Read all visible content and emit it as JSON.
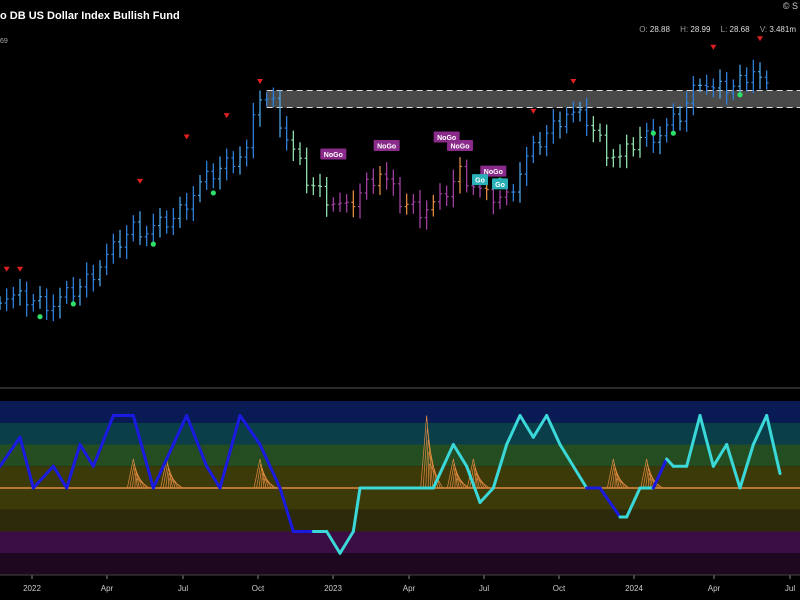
{
  "header": {
    "title": "o DB US Dollar Index Bullish Fund",
    "copyright": "© S",
    "ohlc": [
      {
        "key": "O:",
        "value": "28.88"
      },
      {
        "key": "H:",
        "value": "28.99"
      },
      {
        "key": "L:",
        "value": "28.68"
      },
      {
        "key": "V:",
        "value": "3.481m"
      }
    ],
    "left_scale_label": "69"
  },
  "chart_data": {
    "type": "line",
    "x_ticks": [
      "2022",
      "Apr",
      "Jul",
      "Oct",
      "2023",
      "Apr",
      "Jul",
      "Oct",
      "2024",
      "Apr",
      "Jul"
    ],
    "price": {
      "ylim": [
        25.4,
        29.5
      ],
      "series": [
        {
          "week": 0,
          "value": 26.45,
          "trend": "go"
        },
        {
          "week": 4,
          "value": 26.4,
          "trend": "go"
        },
        {
          "week": 8,
          "value": 26.35,
          "trend": "go"
        },
        {
          "week": 12,
          "value": 26.55,
          "trend": "go"
        },
        {
          "week": 16,
          "value": 26.9,
          "trend": "go"
        },
        {
          "week": 20,
          "value": 27.25,
          "trend": "go"
        },
        {
          "week": 22,
          "value": 27.2,
          "trend": "go"
        },
        {
          "week": 26,
          "value": 27.35,
          "trend": "go"
        },
        {
          "week": 30,
          "value": 27.75,
          "trend": "go"
        },
        {
          "week": 34,
          "value": 28.0,
          "trend": "go"
        },
        {
          "week": 37,
          "value": 28.15,
          "trend": "go"
        },
        {
          "week": 39,
          "value": 28.8,
          "trend": "go"
        },
        {
          "week": 41,
          "value": 28.7,
          "trend": "go"
        },
        {
          "week": 43,
          "value": 28.3,
          "trend": "weak"
        },
        {
          "week": 46,
          "value": 27.8,
          "trend": "weak"
        },
        {
          "week": 49,
          "value": 27.6,
          "trend": "nogo"
        },
        {
          "week": 52,
          "value": 27.45,
          "trend": "nogo"
        },
        {
          "week": 55,
          "value": 27.75,
          "trend": "nogo"
        },
        {
          "week": 57,
          "value": 27.9,
          "trend": "nogo"
        },
        {
          "week": 60,
          "value": 27.55,
          "trend": "nogo"
        },
        {
          "week": 63,
          "value": 27.45,
          "trend": "nogo"
        },
        {
          "week": 66,
          "value": 27.55,
          "trend": "nogo"
        },
        {
          "week": 69,
          "value": 27.9,
          "trend": "nogo"
        },
        {
          "week": 71,
          "value": 27.75,
          "trend": "nogo"
        },
        {
          "week": 73,
          "value": 27.6,
          "trend": "nogo"
        },
        {
          "week": 76,
          "value": 27.6,
          "trend": "go"
        },
        {
          "week": 79,
          "value": 28.05,
          "trend": "go"
        },
        {
          "week": 82,
          "value": 28.35,
          "trend": "go"
        },
        {
          "week": 85,
          "value": 28.6,
          "trend": "go"
        },
        {
          "week": 88,
          "value": 28.5,
          "trend": "weak"
        },
        {
          "week": 91,
          "value": 28.15,
          "trend": "weak"
        },
        {
          "week": 93,
          "value": 28.05,
          "trend": "weak"
        },
        {
          "week": 96,
          "value": 28.3,
          "trend": "go"
        },
        {
          "week": 99,
          "value": 28.35,
          "trend": "go"
        },
        {
          "week": 102,
          "value": 28.55,
          "trend": "go"
        },
        {
          "week": 105,
          "value": 29.0,
          "trend": "go"
        },
        {
          "week": 107,
          "value": 28.85,
          "trend": "go"
        },
        {
          "week": 110,
          "value": 28.9,
          "trend": "go"
        },
        {
          "week": 113,
          "value": 29.1,
          "trend": "go"
        },
        {
          "week": 115,
          "value": 28.85,
          "trend": "go"
        }
      ],
      "resistance_zone": [
        28.65,
        28.85
      ],
      "nogo_labels": [
        {
          "week": 50,
          "value": 28.1,
          "text": "NoGo"
        },
        {
          "week": 58,
          "value": 28.2,
          "text": "NoGo"
        },
        {
          "week": 67,
          "value": 28.3,
          "text": "NoGo"
        },
        {
          "week": 69,
          "value": 28.2,
          "text": "NoGo"
        },
        {
          "week": 74,
          "value": 27.9,
          "text": "NoGo"
        }
      ],
      "go_labels": [
        {
          "week": 72,
          "value": 27.8,
          "text": "Go"
        },
        {
          "week": 75,
          "value": 27.75,
          "text": "Go"
        }
      ],
      "red_triangles": [
        {
          "week": 1,
          "value": 26.75
        },
        {
          "week": 3,
          "value": 26.75
        },
        {
          "week": 21,
          "value": 27.78
        },
        {
          "week": 28,
          "value": 28.3
        },
        {
          "week": 34,
          "value": 28.55
        },
        {
          "week": 39,
          "value": 28.95
        },
        {
          "week": 80,
          "value": 28.6
        },
        {
          "week": 86,
          "value": 28.95
        },
        {
          "week": 107,
          "value": 29.35
        },
        {
          "week": 114,
          "value": 29.45
        }
      ],
      "green_dots": [
        {
          "week": 6,
          "value": 26.2
        },
        {
          "week": 11,
          "value": 26.35
        },
        {
          "week": 23,
          "value": 27.05
        },
        {
          "week": 32,
          "value": 27.65
        },
        {
          "week": 75,
          "value": 27.8
        },
        {
          "week": 98,
          "value": 28.35
        },
        {
          "week": 101,
          "value": 28.35
        },
        {
          "week": 111,
          "value": 28.8
        }
      ]
    },
    "oscillator": {
      "ylim": [
        -6,
        6
      ],
      "zero": 0,
      "series": [
        {
          "week": 0,
          "value": 1.5,
          "color": "blue"
        },
        {
          "week": 3,
          "value": 3.5,
          "color": "blue"
        },
        {
          "week": 5,
          "value": 0,
          "color": "blue"
        },
        {
          "week": 8,
          "value": 1.5,
          "color": "blue"
        },
        {
          "week": 10,
          "value": 0,
          "color": "blue"
        },
        {
          "week": 12,
          "value": 3,
          "color": "blue"
        },
        {
          "week": 14,
          "value": 1.5,
          "color": "blue"
        },
        {
          "week": 17,
          "value": 5,
          "color": "blue"
        },
        {
          "week": 20,
          "value": 5,
          "color": "blue"
        },
        {
          "week": 23,
          "value": 0,
          "color": "blue"
        },
        {
          "week": 26,
          "value": 3,
          "color": "blue"
        },
        {
          "week": 28,
          "value": 5,
          "color": "blue"
        },
        {
          "week": 31,
          "value": 1.5,
          "color": "blue"
        },
        {
          "week": 33,
          "value": 0,
          "color": "blue"
        },
        {
          "week": 36,
          "value": 5,
          "color": "blue"
        },
        {
          "week": 39,
          "value": 3,
          "color": "blue"
        },
        {
          "week": 42,
          "value": 0,
          "color": "blue"
        },
        {
          "week": 44,
          "value": -3,
          "color": "blue"
        },
        {
          "week": 47,
          "value": -3,
          "color": "blue"
        },
        {
          "week": 49,
          "value": -3,
          "color": "cyan"
        },
        {
          "week": 51,
          "value": -4.5,
          "color": "cyan"
        },
        {
          "week": 53,
          "value": -3,
          "color": "cyan"
        },
        {
          "week": 54,
          "value": 0,
          "color": "cyan"
        },
        {
          "week": 60,
          "value": 0,
          "color": "cyan"
        },
        {
          "week": 65,
          "value": 0,
          "color": "cyan"
        },
        {
          "week": 68,
          "value": 3,
          "color": "cyan"
        },
        {
          "week": 70,
          "value": 1.5,
          "color": "cyan"
        },
        {
          "week": 72,
          "value": -1,
          "color": "cyan"
        },
        {
          "week": 74,
          "value": 0,
          "color": "cyan"
        },
        {
          "week": 76,
          "value": 3,
          "color": "cyan"
        },
        {
          "week": 78,
          "value": 5,
          "color": "cyan"
        },
        {
          "week": 80,
          "value": 3.5,
          "color": "cyan"
        },
        {
          "week": 82,
          "value": 5,
          "color": "cyan"
        },
        {
          "week": 84,
          "value": 3,
          "color": "cyan"
        },
        {
          "week": 86,
          "value": 1.5,
          "color": "cyan"
        },
        {
          "week": 88,
          "value": 0,
          "color": "cyan"
        },
        {
          "week": 90,
          "value": 0,
          "color": "blue"
        },
        {
          "week": 93,
          "value": -2,
          "color": "blue"
        },
        {
          "week": 94,
          "value": -2,
          "color": "cyan"
        },
        {
          "week": 96,
          "value": 0,
          "color": "cyan"
        },
        {
          "week": 98,
          "value": 0,
          "color": "cyan"
        },
        {
          "week": 100,
          "value": 2,
          "color": "blue"
        },
        {
          "week": 101,
          "value": 1.5,
          "color": "cyan"
        },
        {
          "week": 103,
          "value": 1.5,
          "color": "cyan"
        },
        {
          "week": 105,
          "value": 5,
          "color": "cyan"
        },
        {
          "week": 107,
          "value": 1.5,
          "color": "cyan"
        },
        {
          "week": 109,
          "value": 3,
          "color": "cyan"
        },
        {
          "week": 111,
          "value": 0,
          "color": "cyan"
        },
        {
          "week": 113,
          "value": 3,
          "color": "cyan"
        },
        {
          "week": 115,
          "value": 5,
          "color": "cyan"
        },
        {
          "week": 117,
          "value": 1,
          "color": "cyan"
        }
      ],
      "orange_spikes": [
        {
          "week": 20,
          "value": 2
        },
        {
          "week": 25,
          "value": 2
        },
        {
          "week": 39,
          "value": 2
        },
        {
          "week": 64,
          "value": 5
        },
        {
          "week": 68,
          "value": 2
        },
        {
          "week": 71,
          "value": 2
        },
        {
          "week": 92,
          "value": 2
        },
        {
          "week": 97,
          "value": 2
        }
      ]
    }
  },
  "colors": {
    "go": "#2f7fd8",
    "go_strong": "#4aa3e8",
    "weak": "#8fe0b0",
    "nogo": "#a040a0",
    "nogo_orange": "#e08a40",
    "label_nogo_bg": "#8a2a8a",
    "label_go_bg": "#2ab0b8",
    "osc_blue": "#1a1ae0",
    "osc_cyan": "#3ad8d8",
    "osc_orange": "#e08a40",
    "red": "#e02020",
    "green_dot": "#2ee06a"
  }
}
